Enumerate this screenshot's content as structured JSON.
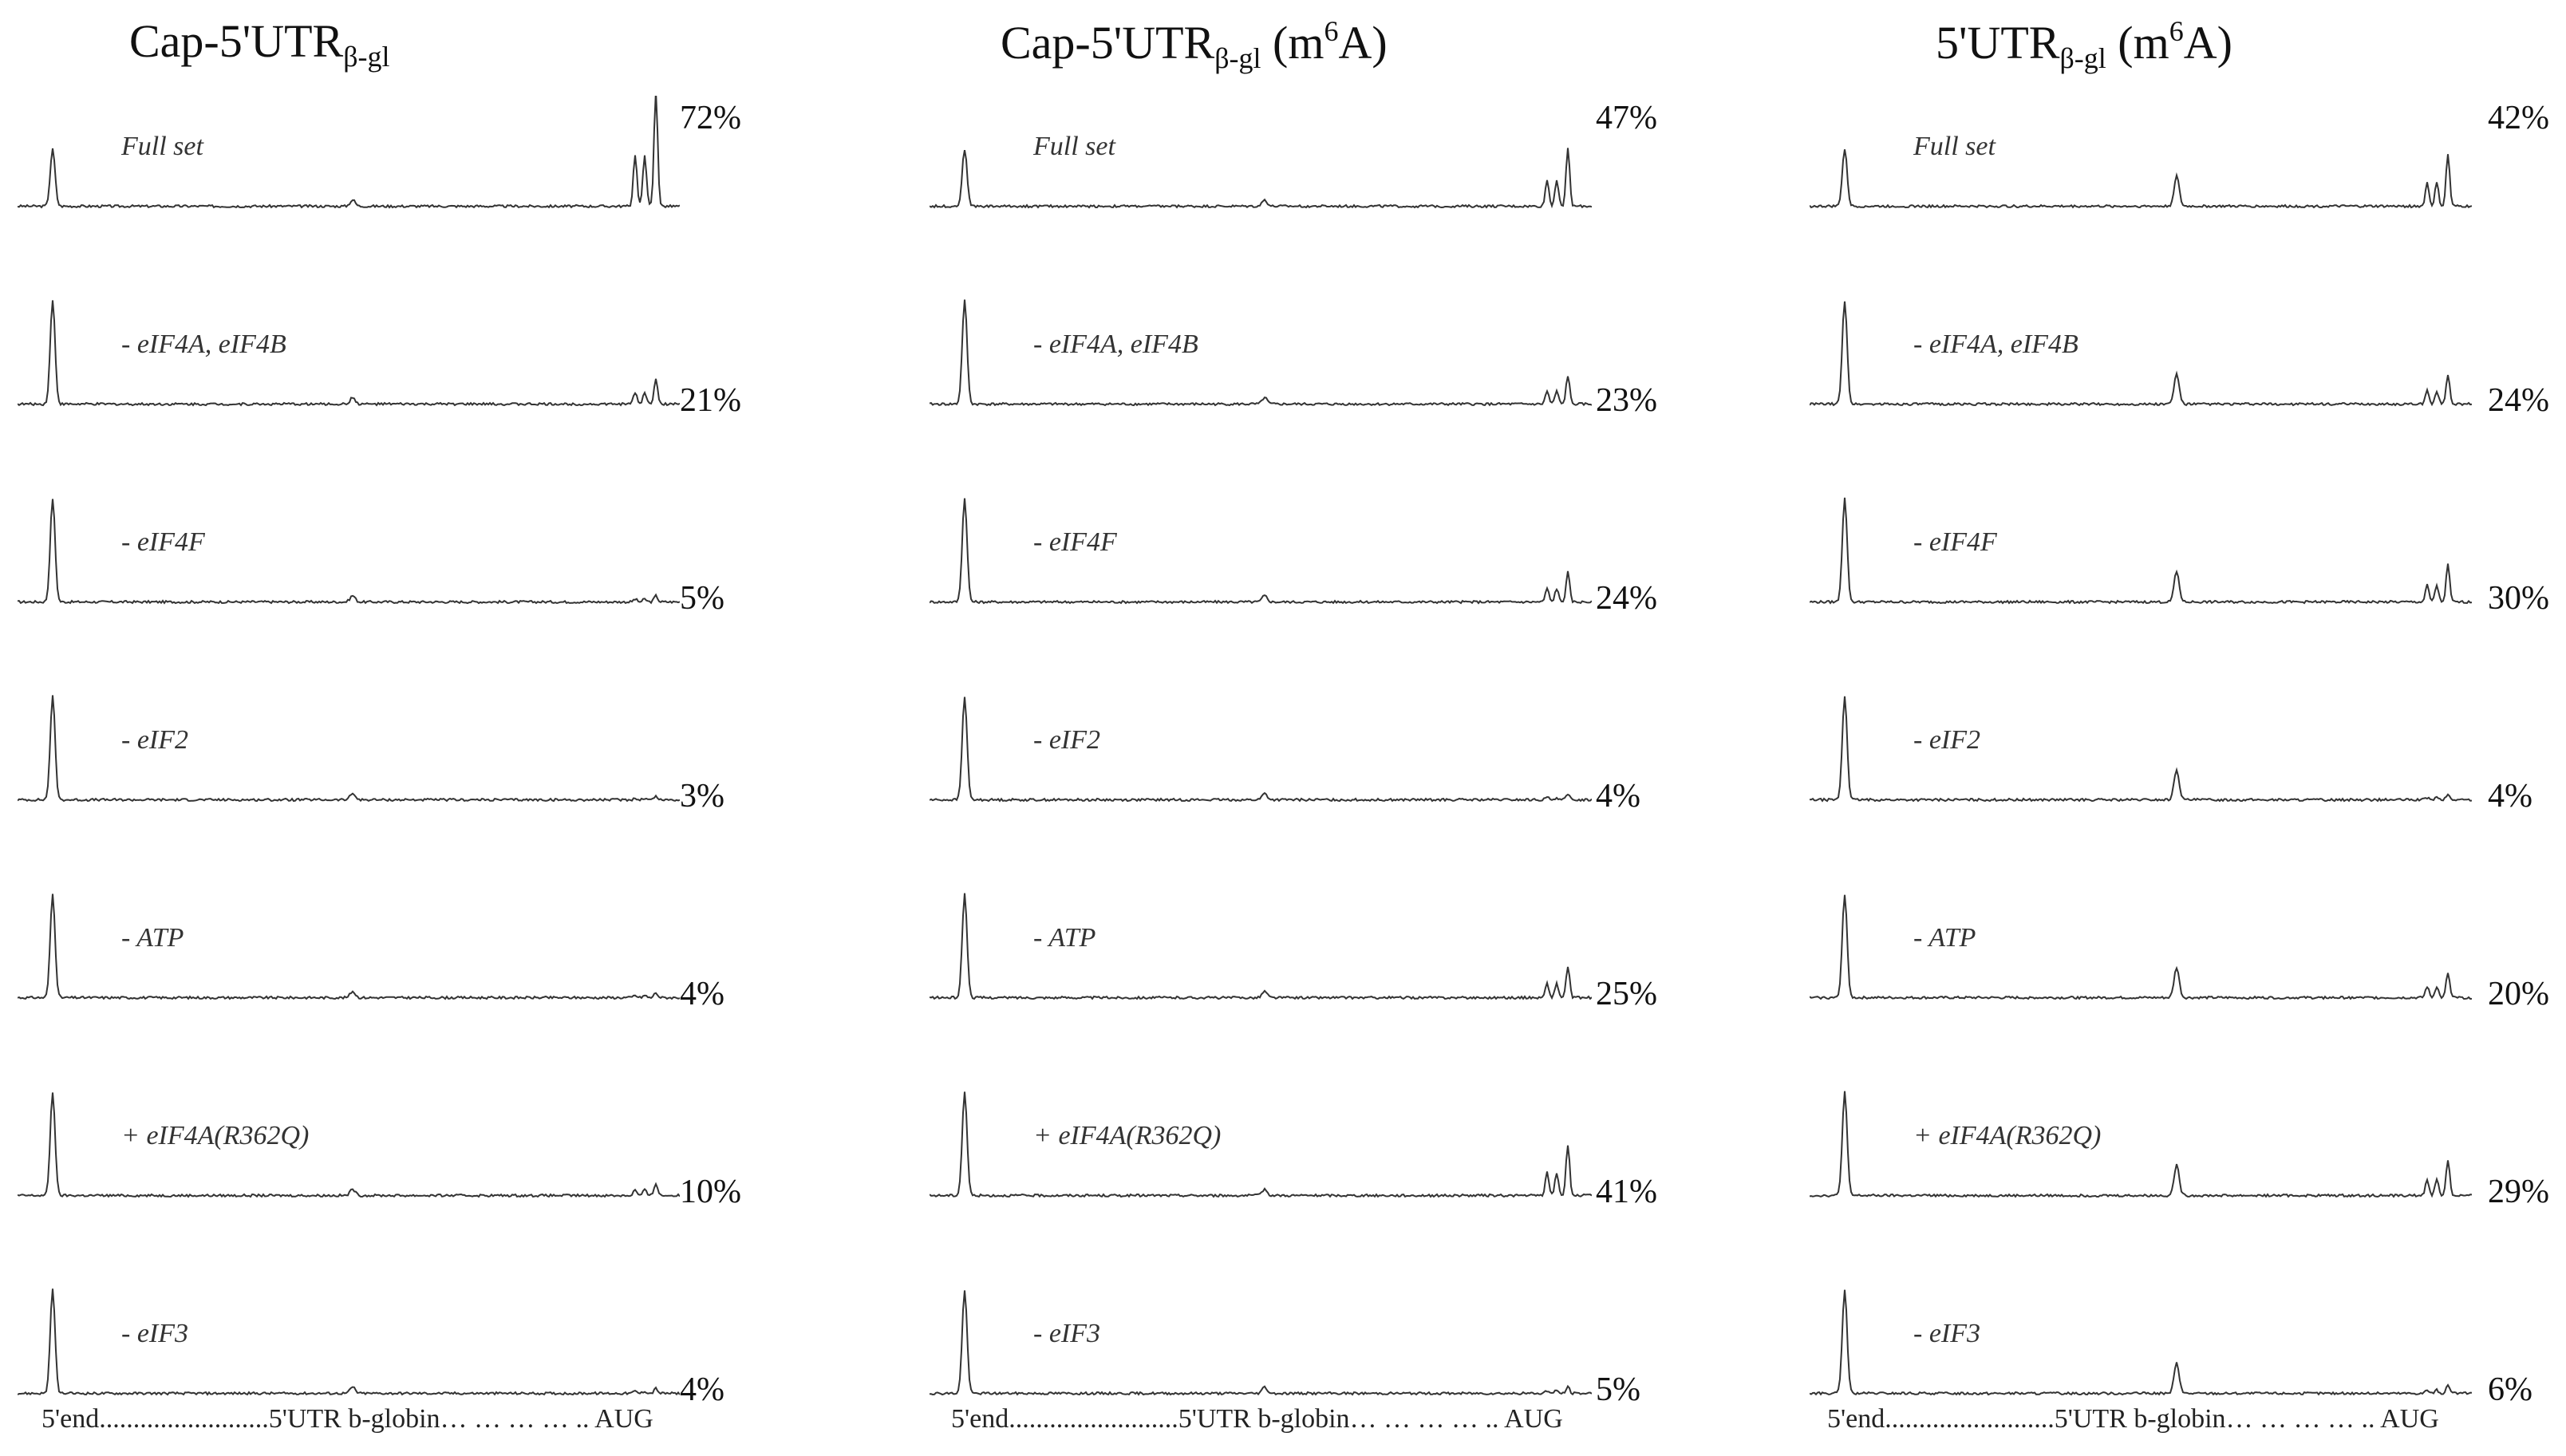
{
  "chart_data": [
    {
      "type": "line",
      "title_main": "Cap-5'UTR",
      "title_sub": "β-gl",
      "title_sup": "",
      "title_after": "",
      "xlabel": "5'end.........................5'UTR b-globin… … … … .. AUG",
      "panels": [
        {
          "condition": "Full set",
          "percent": "72%",
          "peak": 0.72
        },
        {
          "condition": "- eIF4A, eIF4B",
          "percent": "21%",
          "peak": 0.21
        },
        {
          "condition": "- eIF4F",
          "percent": "5%",
          "peak": 0.05
        },
        {
          "condition": "- eIF2",
          "percent": "3%",
          "peak": 0.03
        },
        {
          "condition": "- ATP",
          "percent": "4%",
          "peak": 0.04
        },
        {
          "condition": "+ eIF4A(R362Q)",
          "percent": "10%",
          "peak": 0.1
        },
        {
          "condition": "- eIF3",
          "percent": "4%",
          "peak": 0.04
        }
      ]
    },
    {
      "type": "line",
      "title_main": "Cap-5'UTR",
      "title_sub": "β-gl",
      "title_pre_sup": " (m",
      "title_sup": "6",
      "title_after": "A)",
      "xlabel": "5'end.........................5'UTR b-globin… … … … .. AUG",
      "panels": [
        {
          "condition": "Full set",
          "percent": "47%",
          "peak": 0.47
        },
        {
          "condition": "- eIF4A, eIF4B",
          "percent": "23%",
          "peak": 0.23
        },
        {
          "condition": "- eIF4F",
          "percent": "24%",
          "peak": 0.24
        },
        {
          "condition": "- eIF2",
          "percent": "4%",
          "peak": 0.04
        },
        {
          "condition": "- ATP",
          "percent": "25%",
          "peak": 0.25
        },
        {
          "condition": "+ eIF4A(R362Q)",
          "percent": "41%",
          "peak": 0.41
        },
        {
          "condition": "- eIF3",
          "percent": "5%",
          "peak": 0.05
        }
      ]
    },
    {
      "type": "line",
      "title_main": "5'UTR",
      "title_sub": "β-gl",
      "title_pre_sup": " (m",
      "title_sup": "6",
      "title_after": "A)",
      "xlabel": "5'end.........................5'UTR b-globin… … … … .. AUG",
      "panels": [
        {
          "condition": "Full set",
          "percent": "42%",
          "peak": 0.42
        },
        {
          "condition": "- eIF4A, eIF4B",
          "percent": "24%",
          "peak": 0.24
        },
        {
          "condition": "- eIF4F",
          "percent": "30%",
          "peak": 0.3
        },
        {
          "condition": "- eIF2",
          "percent": "4%",
          "peak": 0.04
        },
        {
          "condition": "- ATP",
          "percent": "20%",
          "peak": 0.2
        },
        {
          "condition": "+ eIF4A(R362Q)",
          "percent": "29%",
          "peak": 0.29
        },
        {
          "condition": "- eIF3",
          "percent": "6%",
          "peak": 0.06
        }
      ]
    }
  ]
}
